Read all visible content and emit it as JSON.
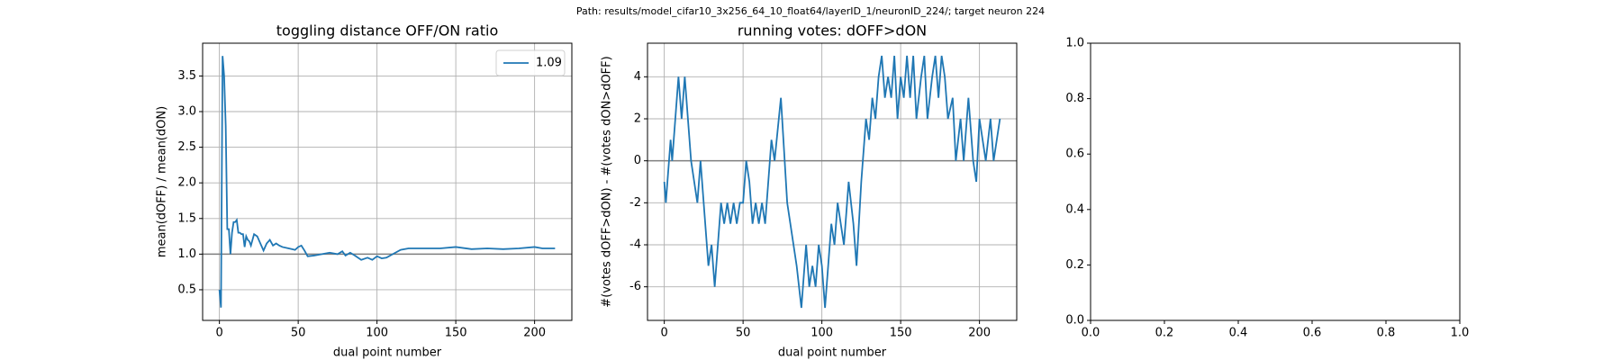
{
  "title": "Path: results/model_cifar10_3x256_64_10_float64/layerID_1/neuronID_224/; target neuron 224",
  "chart_data": [
    {
      "type": "line",
      "title": "toggling distance OFF/ON ratio",
      "x_label": "dual point number",
      "y_label": "mean(dOFF) / mean(dON)",
      "x": [
        0,
        1,
        2,
        3,
        4,
        5,
        6,
        7,
        8,
        9,
        10,
        11,
        12,
        13,
        14,
        15,
        16,
        17,
        18,
        19,
        20,
        22,
        24,
        26,
        28,
        30,
        32,
        34,
        36,
        38,
        40,
        44,
        48,
        50,
        52,
        54,
        56,
        60,
        65,
        70,
        75,
        78,
        80,
        83,
        86,
        90,
        94,
        97,
        100,
        103,
        106,
        110,
        115,
        120,
        130,
        140,
        150,
        160,
        170,
        180,
        190,
        200,
        205,
        213
      ],
      "series": [
        {
          "name": "1.09",
          "color": "#1f77b4",
          "values": [
            0.5,
            0.25,
            3.78,
            3.5,
            2.8,
            1.35,
            1.35,
            1.0,
            1.3,
            1.45,
            1.45,
            1.48,
            1.3,
            1.3,
            1.28,
            1.28,
            1.1,
            1.25,
            1.2,
            1.18,
            1.12,
            1.28,
            1.25,
            1.15,
            1.05,
            1.15,
            1.2,
            1.12,
            1.15,
            1.12,
            1.1,
            1.08,
            1.06,
            1.1,
            1.12,
            1.05,
            0.97,
            0.98,
            1.0,
            1.02,
            1.0,
            1.04,
            0.98,
            1.02,
            0.98,
            0.92,
            0.95,
            0.92,
            0.97,
            0.94,
            0.95,
            1.0,
            1.06,
            1.08,
            1.08,
            1.08,
            1.1,
            1.07,
            1.08,
            1.07,
            1.08,
            1.1,
            1.08,
            1.08
          ]
        }
      ],
      "hlines": [
        1
      ],
      "xlim": [
        -10.65,
        223.65
      ],
      "ylim": [
        0.07,
        3.96
      ],
      "xticks": [
        0,
        50,
        100,
        150,
        200
      ],
      "yticks": [
        0.5,
        {
          "value": 1,
          "label": "1.0"
        },
        1.5,
        {
          "value": 2,
          "label": "2.0"
        },
        2.5,
        {
          "value": 3,
          "label": "3.0"
        },
        3.5
      ],
      "grid": true,
      "legend": "upper right"
    },
    {
      "type": "line",
      "title": "running votes: dOFF>dON",
      "x_label": "dual point number",
      "y_label": "#(votes dOFF>dON) - #(votes dON>dOFF)",
      "x": [
        0,
        1,
        3,
        4,
        5,
        9,
        11,
        13,
        17,
        21,
        23,
        28,
        30,
        32,
        36,
        38,
        40,
        42,
        44,
        46,
        48,
        50,
        52,
        54,
        56,
        58,
        60,
        62,
        64,
        68,
        70,
        74,
        78,
        80,
        84,
        87,
        90,
        92,
        94,
        96,
        98,
        100,
        102,
        104,
        106,
        108,
        110,
        114,
        117,
        120,
        122,
        125,
        128,
        130,
        132,
        134,
        136,
        138,
        140,
        142,
        144,
        146,
        148,
        150,
        152,
        154,
        156,
        158,
        160,
        163,
        165,
        167,
        170,
        172,
        174,
        176,
        178,
        180,
        183,
        185,
        188,
        190,
        193,
        196,
        198,
        200,
        202,
        204,
        207,
        209,
        211,
        213
      ],
      "series": [
        {
          "name": "votes",
          "color": "#1f77b4",
          "values": [
            -1,
            -2,
            0,
            1,
            0,
            4,
            2,
            4,
            0,
            -2,
            0,
            -5,
            -4,
            -6,
            -2,
            -3,
            -2,
            -3,
            -2,
            -3,
            -2,
            -2,
            0,
            -1,
            -3,
            -2,
            -3,
            -2,
            -3,
            1,
            0,
            3,
            -2,
            -3,
            -5,
            -7,
            -4,
            -6,
            -5,
            -6,
            -4,
            -5,
            -7,
            -5,
            -3,
            -4,
            -2,
            -4,
            -1,
            -3,
            -5,
            -1,
            2,
            1,
            3,
            2,
            4,
            5,
            3,
            4,
            3,
            5,
            2,
            4,
            3,
            5,
            3,
            5,
            2,
            4,
            5,
            2,
            4,
            5,
            3,
            5,
            4,
            2,
            3,
            0,
            2,
            0,
            3,
            0,
            -1,
            2,
            1,
            0,
            2,
            0,
            1,
            2
          ]
        }
      ],
      "hlines": [
        0
      ],
      "xlim": [
        -10.65,
        223.65
      ],
      "ylim": [
        -7.6,
        5.6
      ],
      "xticks": [
        0,
        50,
        100,
        150,
        200
      ],
      "yticks": [
        -6,
        -4,
        -2,
        0,
        2,
        4
      ],
      "grid": true
    },
    {
      "type": "blank",
      "xlim": [
        0,
        1
      ],
      "ylim": [
        0,
        1
      ],
      "xticks": [
        {
          "value": 0,
          "label": "0.0"
        },
        0.2,
        0.4,
        0.6,
        0.8,
        {
          "value": 1,
          "label": "1.0"
        }
      ],
      "yticks": [
        {
          "value": 0,
          "label": "0.0"
        },
        0.2,
        0.4,
        0.6,
        0.8,
        {
          "value": 1,
          "label": "1.0"
        }
      ],
      "grid": false
    }
  ]
}
